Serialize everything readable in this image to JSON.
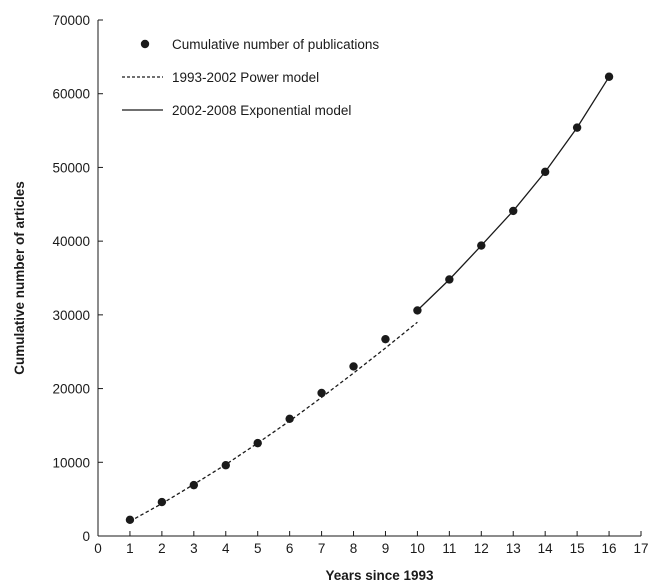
{
  "chart_data": {
    "type": "scatter",
    "title": "",
    "xlabel": "Years since 1993",
    "ylabel": "Cumulative number of articles",
    "xlim": [
      0,
      17
    ],
    "ylim": [
      0,
      70000
    ],
    "xticks": [
      0,
      1,
      2,
      3,
      4,
      5,
      6,
      7,
      8,
      9,
      10,
      11,
      12,
      13,
      14,
      15,
      16,
      17
    ],
    "yticks": [
      0,
      10000,
      20000,
      30000,
      40000,
      50000,
      60000,
      70000
    ],
    "grid": false,
    "legend_position": "top-left",
    "series": [
      {
        "name": "Cumulative number of publications",
        "kind": "markers",
        "x": [
          1,
          2,
          3,
          4,
          5,
          6,
          7,
          8,
          9,
          10,
          11,
          12,
          13,
          14,
          15,
          16
        ],
        "y": [
          2200,
          4600,
          6900,
          9600,
          12600,
          15900,
          19400,
          23000,
          26700,
          30600,
          34800,
          39400,
          44100,
          49400,
          55400,
          62300
        ]
      },
      {
        "name": "1993-2002 Power model",
        "kind": "dashed-line",
        "x": [
          1,
          2,
          3,
          4,
          5,
          6,
          7,
          8,
          9,
          10
        ],
        "y": [
          2000,
          4400,
          7000,
          9700,
          12600,
          15600,
          18800,
          22100,
          25500,
          29000
        ]
      },
      {
        "name": "2002-2008 Exponential model",
        "kind": "solid-line",
        "x": [
          10,
          11,
          12,
          13,
          14,
          15,
          16
        ],
        "y": [
          30600,
          34800,
          39400,
          44100,
          49400,
          55400,
          62300
        ]
      }
    ],
    "colors": {
      "axis": "#1a1a1a",
      "marker": "#1a1a1a",
      "line": "#1a1a1a"
    }
  }
}
